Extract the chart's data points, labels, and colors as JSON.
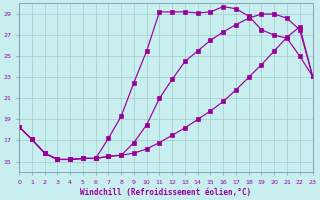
{
  "xlabel": "Windchill (Refroidissement éolien,°C)",
  "background_color": "#c8eef0",
  "grid_color": "#a0cccc",
  "line_color": "#990099",
  "xlim": [
    0,
    23
  ],
  "ylim": [
    14,
    30
  ],
  "yticks": [
    15,
    17,
    19,
    21,
    23,
    25,
    27,
    29
  ],
  "xticks": [
    0,
    1,
    2,
    3,
    4,
    5,
    6,
    7,
    8,
    9,
    10,
    11,
    12,
    13,
    14,
    15,
    16,
    17,
    18,
    19,
    20,
    21,
    22,
    23
  ],
  "series1_x": [
    0,
    1,
    2,
    3,
    4,
    5,
    6,
    7,
    8,
    9,
    10,
    11,
    12,
    13,
    14,
    15,
    16,
    17,
    18,
    19,
    20,
    21,
    22,
    23
  ],
  "series1_y": [
    18.3,
    17.1,
    15.8,
    15.2,
    15.2,
    15.3,
    15.3,
    17.2,
    19.3,
    22.5,
    25.5,
    29.2,
    29.2,
    29.2,
    29.1,
    29.2,
    29.7,
    29.5,
    28.8,
    27.5,
    27.0,
    26.7,
    25.0,
    23.1
  ],
  "series2_x": [
    0,
    1,
    2,
    3,
    4,
    5,
    6,
    7,
    8,
    9,
    10,
    11,
    12,
    13,
    14,
    15,
    16,
    17,
    18,
    19,
    20,
    21,
    22,
    23
  ],
  "series2_y": [
    18.3,
    17.1,
    15.8,
    15.2,
    15.2,
    15.3,
    15.3,
    15.5,
    15.6,
    16.8,
    18.5,
    21.0,
    22.8,
    24.5,
    25.5,
    26.5,
    27.3,
    28.0,
    28.6,
    29.0,
    29.0,
    28.6,
    27.5,
    23.1
  ],
  "series3_x": [
    0,
    1,
    2,
    3,
    4,
    5,
    6,
    7,
    8,
    9,
    10,
    11,
    12,
    13,
    14,
    15,
    16,
    17,
    18,
    19,
    20,
    21,
    22,
    23
  ],
  "series3_y": [
    18.3,
    17.1,
    15.8,
    15.2,
    15.2,
    15.3,
    15.3,
    15.5,
    15.6,
    15.8,
    16.2,
    16.8,
    17.5,
    18.2,
    19.0,
    19.8,
    20.7,
    21.8,
    23.0,
    24.2,
    25.5,
    26.8,
    27.8,
    23.1
  ]
}
